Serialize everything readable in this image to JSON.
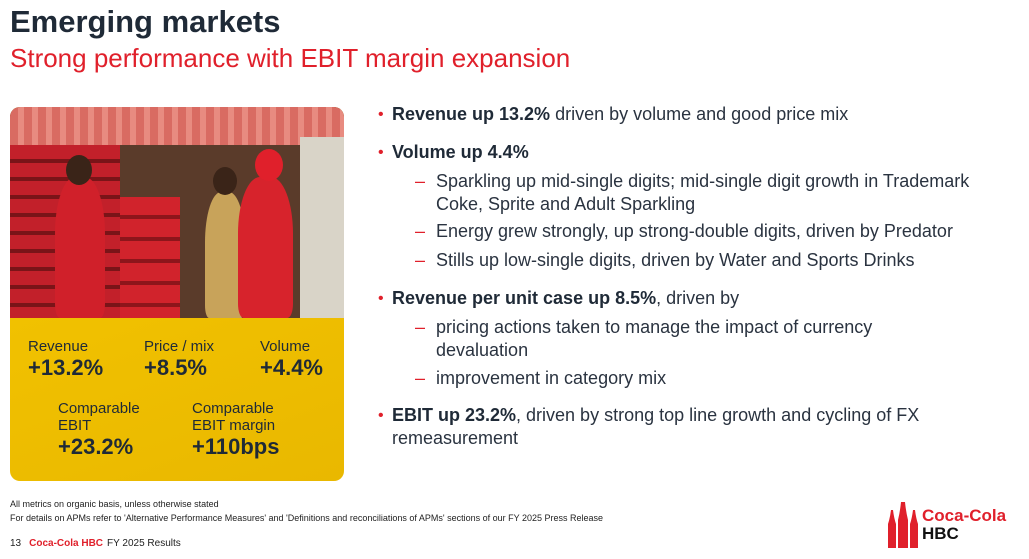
{
  "header": {
    "title": "Emerging markets",
    "subtitle": "Strong performance with EBIT margin expansion"
  },
  "card": {
    "stats": [
      {
        "label": "Revenue",
        "value": "+13.2%"
      },
      {
        "label": "Price / mix",
        "value": "+8.5%"
      },
      {
        "label": "Volume",
        "value": "+4.4%"
      },
      {
        "label": "Comparable EBIT",
        "value": "+23.2%"
      },
      {
        "label": "Comparable EBIT margin",
        "value": "+110bps"
      }
    ]
  },
  "bullets": [
    {
      "bold": "Revenue up 13.2%",
      "rest": " driven by volume and good price mix"
    },
    {
      "bold": "Volume up 4.4%",
      "rest": "",
      "subs": [
        "Sparkling up mid-single digits; mid-single digit growth in Trademark Coke, Sprite and Adult Sparkling",
        "Energy grew strongly, up strong-double digits, driven by Predator",
        "Stills up low-single digits, driven by Water and Sports Drinks"
      ]
    },
    {
      "bold": "Revenue per unit case up 8.5%",
      "rest": ", driven by",
      "subs": [
        "pricing actions taken to manage the impact of currency devaluation",
        "improvement in category mix"
      ]
    },
    {
      "bold": "EBIT up 23.2%",
      "rest": ", driven by strong top line growth and cycling of FX remeasurement"
    }
  ],
  "notes": [
    "All metrics on organic basis, unless otherwise stated",
    "For details on APMs refer to 'Alternative Performance Measures' and 'Definitions and reconciliations of APMs' sections of our FY 2025 Press Release"
  ],
  "footer": {
    "page": "13",
    "brand": "Coca-Cola HBC",
    "label": "FY 2025 Results"
  },
  "logo": {
    "line1": "Coca-Cola",
    "line2": "HBC"
  },
  "colors": {
    "red": "#e0202b",
    "navy": "#1f2a37",
    "yellow": "#f5c400"
  }
}
